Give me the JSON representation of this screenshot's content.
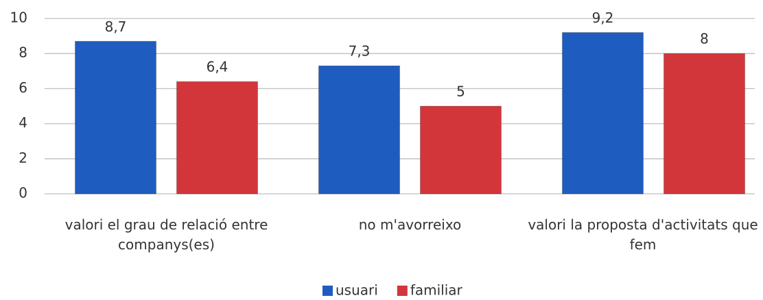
{
  "chart_data": {
    "type": "bar",
    "categories": [
      "valori el grau de relació entre companys(es)",
      "no m'avorreixo",
      "valori la proposta d'activitats que fem"
    ],
    "series": [
      {
        "name": "usuari",
        "color": "#1f5cbf",
        "values": [
          8.7,
          7.3,
          9.2
        ],
        "value_labels": [
          "8,7",
          "7,3",
          "9,2"
        ]
      },
      {
        "name": "familiar",
        "color": "#d2363a",
        "values": [
          6.4,
          5,
          8
        ],
        "value_labels": [
          "6,4",
          "5",
          "8"
        ]
      }
    ],
    "ylim": [
      0,
      10
    ],
    "yticks": [
      0,
      2,
      4,
      6,
      8,
      10
    ],
    "grid": true,
    "legend": "bottom"
  }
}
